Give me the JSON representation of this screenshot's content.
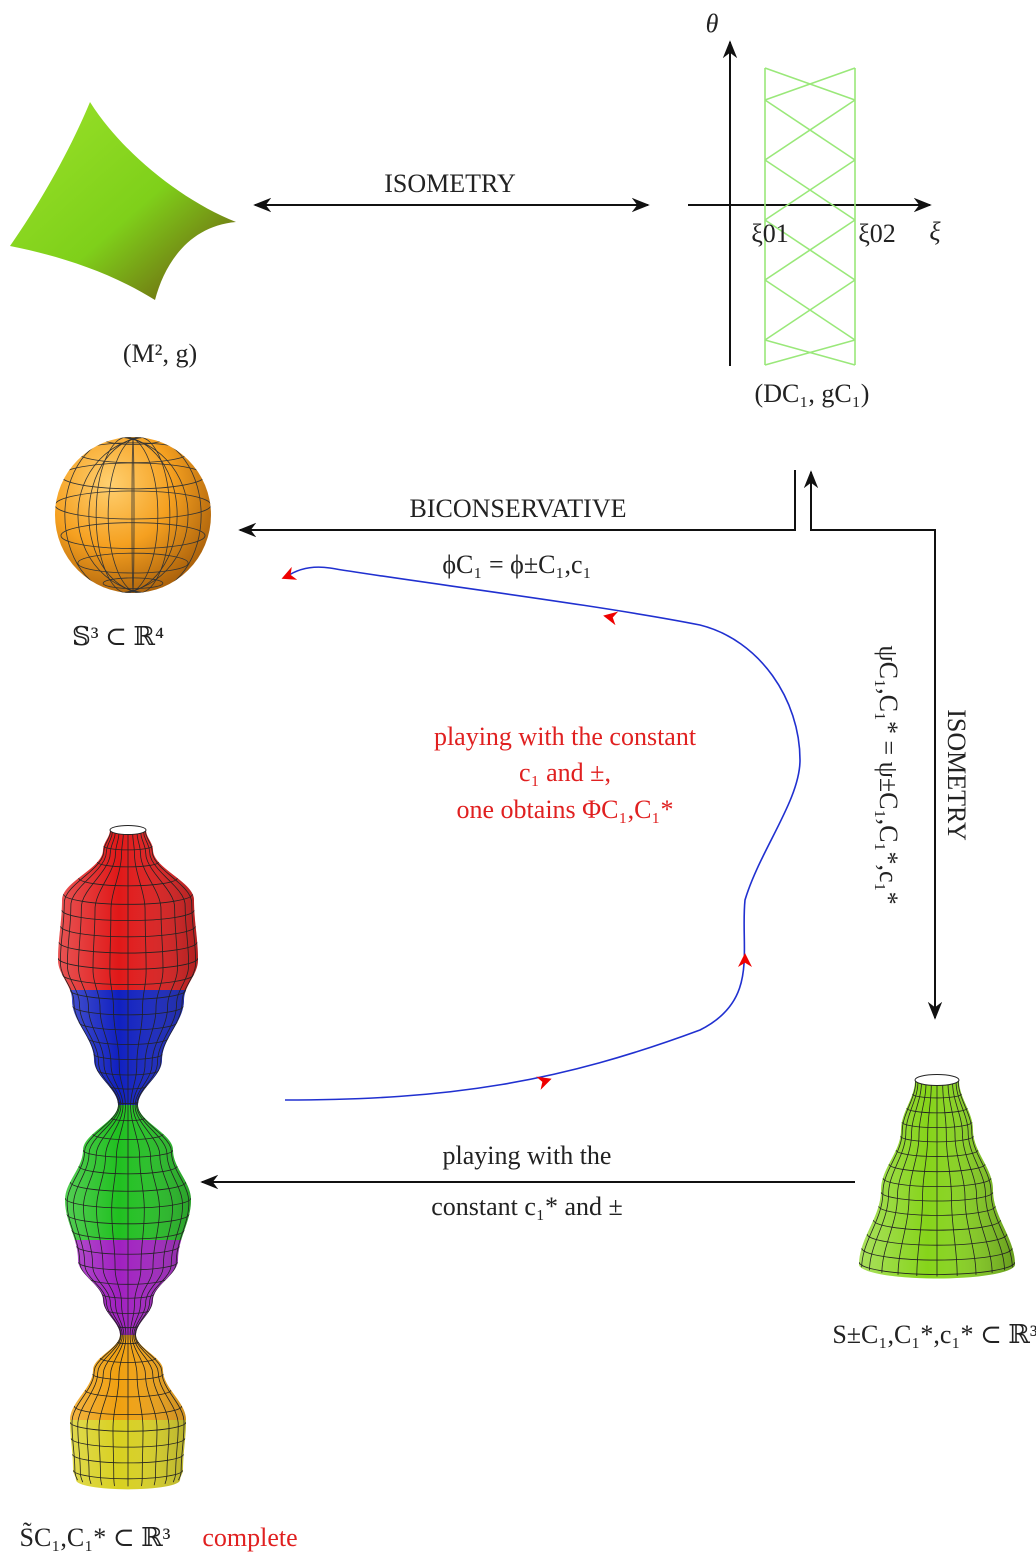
{
  "top": {
    "isometry_label": "ISOMETRY",
    "surface_label": "(M², g)"
  },
  "domain": {
    "theta": "θ",
    "xi": "ξ",
    "xi01": "ξ01",
    "xi02": "ξ02",
    "label": "(DC₁, gC₁)"
  },
  "sphere": {
    "arrow_label": "BICONSERVATIVE",
    "map_label": "ϕC₁ = ϕ±C₁,c₁",
    "label": "𝕊³ ⊂ ℝ⁴"
  },
  "right": {
    "isometry_label": "ISOMETRY",
    "map_label": "ψC₁,C₁* = ψ±C₁,C₁*,c₁*"
  },
  "loop": {
    "lines": [
      "playing with the constant",
      "c₁ and ±,",
      "one obtains ΦC₁,C₁*"
    ]
  },
  "bottom": {
    "arrow_lines": [
      "playing with the",
      "constant c₁* and ±"
    ],
    "surface_label": "S±C₁,C₁*,c₁* ⊂ ℝ³",
    "complete_label": "S̃C₁,C₁* ⊂ ℝ³",
    "complete_word": "complete"
  }
}
